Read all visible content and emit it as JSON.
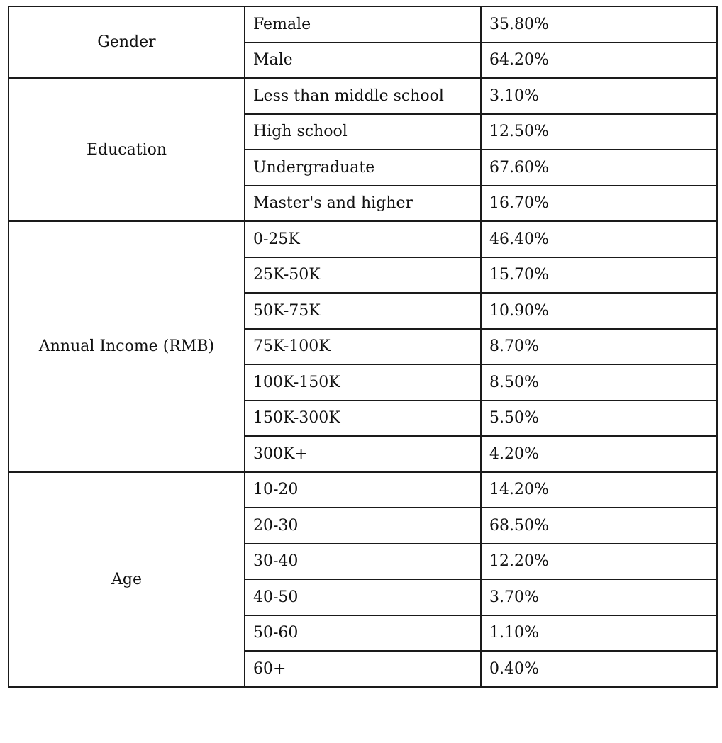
{
  "groups": [
    {
      "name": "Gender",
      "rows": [
        {
          "label": "Female",
          "value": "35.80%"
        },
        {
          "label": "Male",
          "value": "64.20%"
        }
      ]
    },
    {
      "name": "Education",
      "rows": [
        {
          "label": "Less than middle school",
          "value": "3.10%"
        },
        {
          "label": "High school",
          "value": "12.50%"
        },
        {
          "label": "Undergraduate",
          "value": "67.60%"
        },
        {
          "label": "Master's and higher",
          "value": "16.70%"
        }
      ]
    },
    {
      "name": "Annual Income (RMB)",
      "rows": [
        {
          "label": "0-25K",
          "value": "46.40%"
        },
        {
          "label": "25K-50K",
          "value": "15.70%"
        },
        {
          "label": "50K-75K",
          "value": "10.90%"
        },
        {
          "label": "75K-100K",
          "value": "8.70%"
        },
        {
          "label": "100K-150K",
          "value": "8.50%"
        },
        {
          "label": "150K-300K",
          "value": "5.50%"
        },
        {
          "label": "300K+",
          "value": "4.20%"
        }
      ]
    },
    {
      "name": "Age",
      "rows": [
        {
          "label": "10-20",
          "value": "14.20%"
        },
        {
          "label": "20-30",
          "value": "68.50%"
        },
        {
          "label": "30-40",
          "value": "12.20%"
        },
        {
          "label": "40-50",
          "value": "3.70%"
        },
        {
          "label": "50-60",
          "value": "1.10%"
        },
        {
          "label": "60+",
          "value": "0.40%"
        }
      ]
    }
  ]
}
